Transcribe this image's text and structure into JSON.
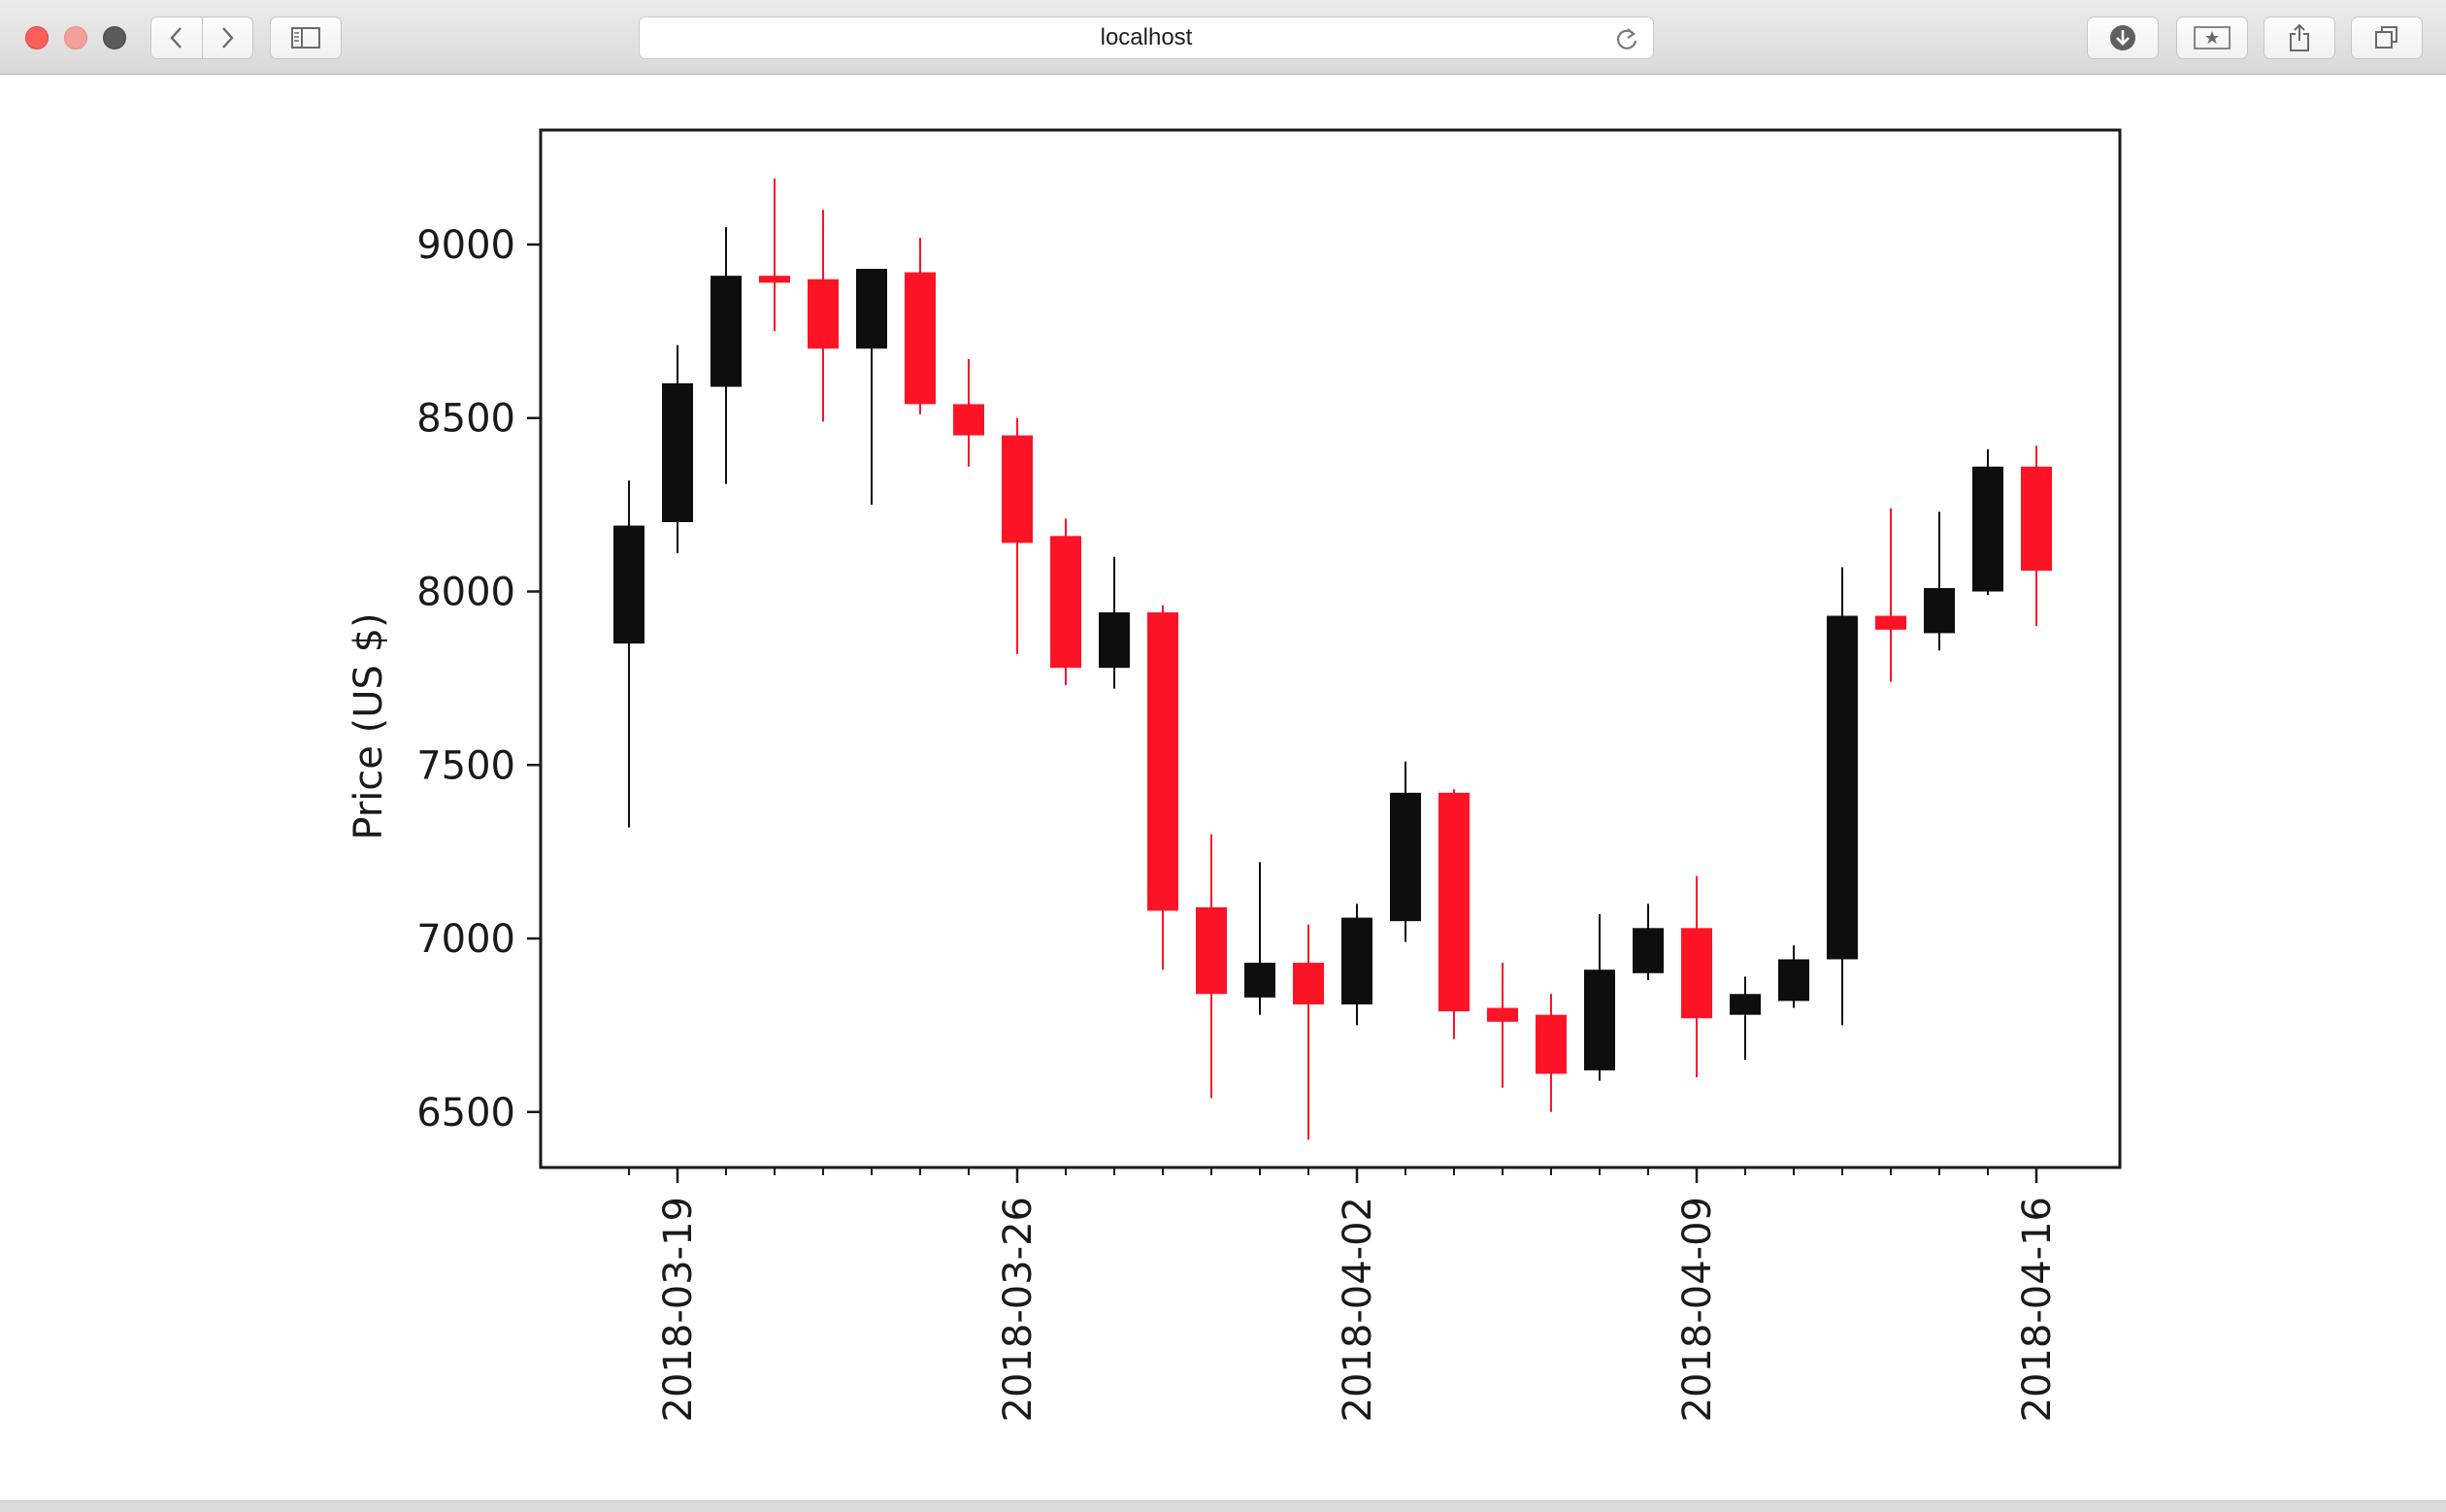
{
  "browser": {
    "url": "localhost"
  },
  "icons": {
    "back": "chevron-left-icon",
    "forward": "chevron-right-icon",
    "sidebar": "sidebar-icon",
    "reload": "reload-icon",
    "download": "download-icon",
    "bookmark": "bookmark-star-icon",
    "share": "share-icon",
    "tabs": "tabs-icon"
  },
  "colors": {
    "up": "#0e0e0e",
    "down": "#fc1426"
  },
  "chart_data": {
    "type": "candlestick",
    "title": "",
    "xlabel": "",
    "ylabel": "Price (US $)",
    "ylim": [
      6340,
      9330
    ],
    "yticks": [
      6500,
      7000,
      7500,
      8000,
      8500,
      9000
    ],
    "xticks": [
      "2018-03-19",
      "2018-03-26",
      "2018-04-02",
      "2018-04-09",
      "2018-04-16"
    ],
    "grid": false,
    "candles": [
      {
        "date": "2018-03-18",
        "open": 7850,
        "high": 8320,
        "low": 7320,
        "close": 8190
      },
      {
        "date": "2018-03-19",
        "open": 8200,
        "high": 8710,
        "low": 8110,
        "close": 8600
      },
      {
        "date": "2018-03-20",
        "open": 8590,
        "high": 9050,
        "low": 8310,
        "close": 8910
      },
      {
        "date": "2018-03-21",
        "open": 8910,
        "high": 9190,
        "low": 8750,
        "close": 8890
      },
      {
        "date": "2018-03-22",
        "open": 8900,
        "high": 9100,
        "low": 8490,
        "close": 8700
      },
      {
        "date": "2018-03-23",
        "open": 8700,
        "high": 8930,
        "low": 8250,
        "close": 8930
      },
      {
        "date": "2018-03-24",
        "open": 8920,
        "high": 9020,
        "low": 8510,
        "close": 8540
      },
      {
        "date": "2018-03-25",
        "open": 8540,
        "high": 8670,
        "low": 8360,
        "close": 8450
      },
      {
        "date": "2018-03-26",
        "open": 8450,
        "high": 8500,
        "low": 7820,
        "close": 8140
      },
      {
        "date": "2018-03-27",
        "open": 8160,
        "high": 8210,
        "low": 7730,
        "close": 7780
      },
      {
        "date": "2018-03-28",
        "open": 7780,
        "high": 8100,
        "low": 7720,
        "close": 7940
      },
      {
        "date": "2018-03-29",
        "open": 7940,
        "high": 7960,
        "low": 6910,
        "close": 7080
      },
      {
        "date": "2018-03-30",
        "open": 7090,
        "high": 7300,
        "low": 6540,
        "close": 6840
      },
      {
        "date": "2018-03-31",
        "open": 6830,
        "high": 7220,
        "low": 6780,
        "close": 6930
      },
      {
        "date": "2018-04-01",
        "open": 6930,
        "high": 7040,
        "low": 6420,
        "close": 6810
      },
      {
        "date": "2018-04-02",
        "open": 6810,
        "high": 7100,
        "low": 6750,
        "close": 7060
      },
      {
        "date": "2018-04-03",
        "open": 7050,
        "high": 7510,
        "low": 6990,
        "close": 7420
      },
      {
        "date": "2018-04-04",
        "open": 7420,
        "high": 7430,
        "low": 6710,
        "close": 6790
      },
      {
        "date": "2018-04-05",
        "open": 6800,
        "high": 6930,
        "low": 6570,
        "close": 6760
      },
      {
        "date": "2018-04-06",
        "open": 6780,
        "high": 6840,
        "low": 6500,
        "close": 6610
      },
      {
        "date": "2018-04-07",
        "open": 6620,
        "high": 7070,
        "low": 6590,
        "close": 6910
      },
      {
        "date": "2018-04-08",
        "open": 6900,
        "high": 7100,
        "low": 6880,
        "close": 7030
      },
      {
        "date": "2018-04-09",
        "open": 7030,
        "high": 7180,
        "low": 6600,
        "close": 6770
      },
      {
        "date": "2018-04-10",
        "open": 6780,
        "high": 6890,
        "low": 6650,
        "close": 6840
      },
      {
        "date": "2018-04-11",
        "open": 6820,
        "high": 6980,
        "low": 6800,
        "close": 6940
      },
      {
        "date": "2018-04-12",
        "open": 6940,
        "high": 8070,
        "low": 6750,
        "close": 7930
      },
      {
        "date": "2018-04-13",
        "open": 7930,
        "high": 8240,
        "low": 7740,
        "close": 7890
      },
      {
        "date": "2018-04-14",
        "open": 7880,
        "high": 8230,
        "low": 7830,
        "close": 8010
      },
      {
        "date": "2018-04-15",
        "open": 8000,
        "high": 8410,
        "low": 7990,
        "close": 8360
      },
      {
        "date": "2018-04-16",
        "open": 8360,
        "high": 8420,
        "low": 7900,
        "close": 8060
      }
    ]
  }
}
